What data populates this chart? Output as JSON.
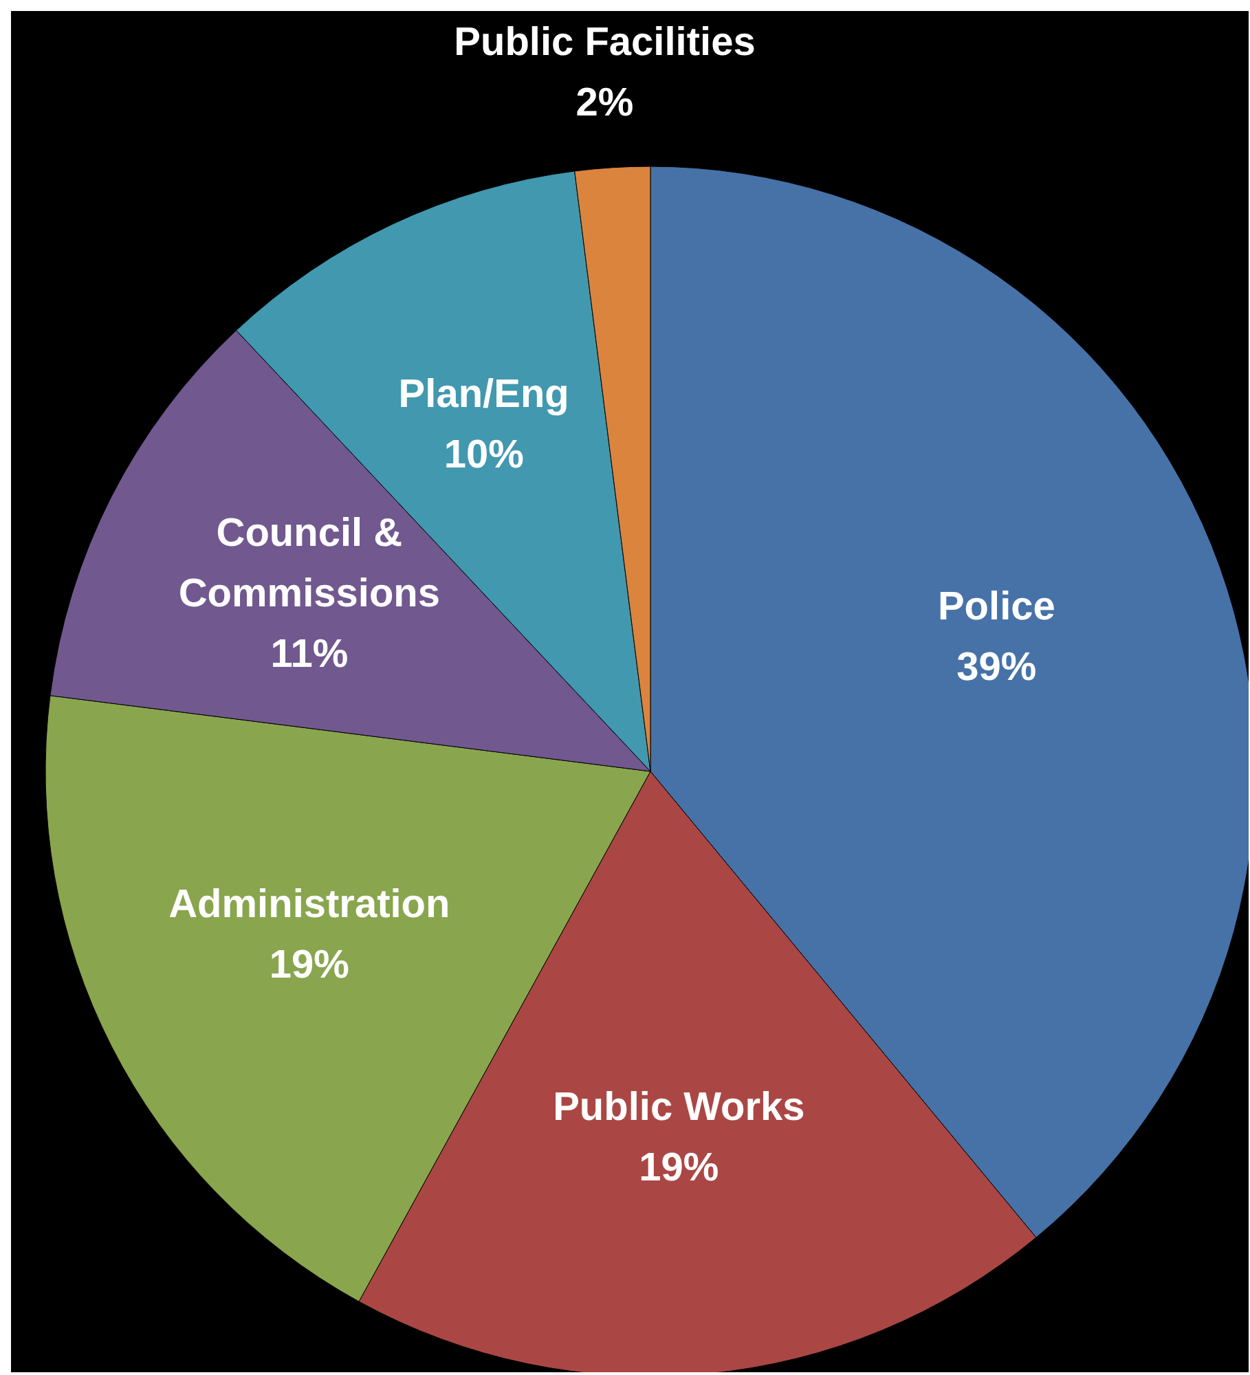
{
  "chart_data": {
    "type": "pie",
    "categories": [
      "Police",
      "Public Works",
      "Administration",
      "Council & Commissions",
      "Plan/Eng",
      "Public Facilities"
    ],
    "values": [
      39,
      19,
      19,
      11,
      10,
      2
    ],
    "value_labels": [
      "39%",
      "19%",
      "19%",
      "11%",
      "10%",
      "2%"
    ],
    "colors": [
      "#4672a8",
      "#aa4744",
      "#89a54e",
      "#71588f",
      "#4198af",
      "#db843d"
    ],
    "legend": false
  }
}
